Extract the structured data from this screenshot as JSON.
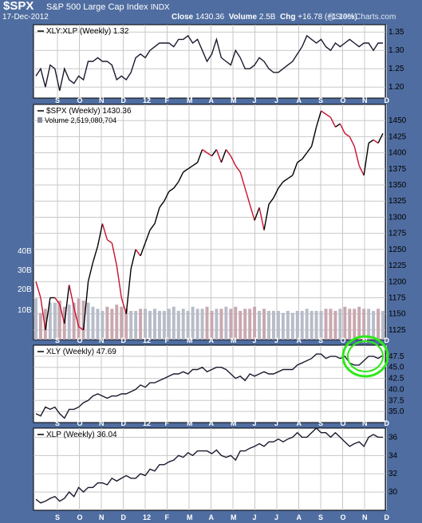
{
  "header": {
    "ticker": "$SPX",
    "name": "S&P 500 Large Cap Index",
    "exchange": "INDX",
    "date": "17-Dec-2012",
    "close_label": "Close",
    "close_value": "1430.36",
    "volume_label": "Volume",
    "volume_value": "2.5B",
    "chg_label": "Chg",
    "chg_value": "+16.78 (+1.19%)",
    "credit": "@StockCharts.com"
  },
  "x_axis": {
    "labels": [
      "S",
      "O",
      "N",
      "D",
      "12",
      "F",
      "M",
      "A",
      "M",
      "J",
      "J",
      "A",
      "S",
      "O",
      "N",
      "D"
    ]
  },
  "chart_data": [
    {
      "type": "line",
      "label": "XLY:XLP (Weekly) 1.32",
      "ylim": [
        1.17,
        1.37
      ],
      "yticks": [
        1.2,
        1.25,
        1.3,
        1.35
      ],
      "values": [
        1.23,
        1.25,
        1.2,
        1.26,
        1.25,
        1.19,
        1.25,
        1.22,
        1.21,
        1.23,
        1.22,
        1.27,
        1.27,
        1.28,
        1.27,
        1.27,
        1.26,
        1.22,
        1.23,
        1.22,
        1.24,
        1.28,
        1.29,
        1.28,
        1.3,
        1.31,
        1.32,
        1.32,
        1.32,
        1.31,
        1.33,
        1.33,
        1.34,
        1.32,
        1.33,
        1.3,
        1.27,
        1.29,
        1.33,
        1.28,
        1.27,
        1.26,
        1.3,
        1.28,
        1.25,
        1.25,
        1.26,
        1.28,
        1.27,
        1.25,
        1.24,
        1.24,
        1.25,
        1.26,
        1.27,
        1.29,
        1.31,
        1.34,
        1.33,
        1.32,
        1.33,
        1.31,
        1.3,
        1.32,
        1.31,
        1.32,
        1.33,
        1.32,
        1.31,
        1.32,
        1.32,
        1.3,
        1.32,
        1.32
      ]
    },
    {
      "type": "line",
      "label": "$SPX (Weekly) 1430.36",
      "volume_label": "Volume 2,519,080,704",
      "ylim": [
        1110,
        1475
      ],
      "yticks": [
        1125,
        1150,
        1175,
        1200,
        1225,
        1250,
        1275,
        1300,
        1325,
        1350,
        1375,
        1400,
        1425,
        1450
      ],
      "volume_yticks": [
        "40B",
        "30B",
        "20B",
        "10B"
      ],
      "values": [
        1200,
        1175,
        1125,
        1175,
        1175,
        1165,
        1135,
        1195,
        1160,
        1130,
        1125,
        1200,
        1230,
        1255,
        1290,
        1265,
        1260,
        1225,
        1175,
        1150,
        1220,
        1250,
        1240,
        1260,
        1280,
        1290,
        1315,
        1325,
        1340,
        1345,
        1355,
        1370,
        1375,
        1380,
        1385,
        1405,
        1400,
        1395,
        1405,
        1385,
        1405,
        1395,
        1380,
        1370,
        1345,
        1320,
        1295,
        1315,
        1280,
        1320,
        1330,
        1345,
        1355,
        1360,
        1365,
        1385,
        1390,
        1400,
        1410,
        1440,
        1465,
        1460,
        1455,
        1440,
        1445,
        1430,
        1425,
        1410,
        1380,
        1365,
        1415,
        1420,
        1415,
        1430
      ],
      "volume_values": [
        20,
        13,
        15,
        18,
        18,
        19,
        16,
        17,
        18,
        20,
        19,
        18,
        16,
        15,
        14,
        16,
        15,
        17,
        16,
        15,
        14,
        14,
        15,
        15,
        14,
        15,
        14,
        14,
        15,
        16,
        14,
        15,
        14,
        16,
        15,
        15,
        16,
        14,
        15,
        15,
        16,
        15,
        16,
        14,
        15,
        15,
        16,
        14,
        15,
        14,
        14,
        14,
        13,
        14,
        13,
        14,
        14,
        15,
        14,
        14,
        14,
        15,
        15,
        14,
        15,
        16,
        15,
        15,
        16,
        15,
        15,
        14,
        15,
        14
      ]
    },
    {
      "type": "line",
      "label": "XLY (Weekly) 47.69",
      "ylim": [
        32.5,
        50.0
      ],
      "yticks": [
        35.0,
        37.5,
        40.0,
        42.5,
        45.0,
        47.5
      ],
      "values": [
        34.5,
        34.0,
        36.0,
        35.5,
        36.0,
        34.5,
        33.5,
        35.5,
        35.5,
        36.0,
        37.0,
        37.5,
        38.5,
        39.0,
        38.5,
        38.0,
        38.5,
        38.5,
        39.0,
        39.0,
        39.5,
        40.0,
        41.0,
        40.5,
        41.5,
        41.5,
        42.0,
        42.5,
        43.0,
        43.5,
        43.5,
        44.0,
        43.5,
        44.5,
        44.5,
        45.0,
        44.0,
        44.5,
        45.0,
        45.0,
        44.5,
        43.5,
        42.5,
        43.0,
        42.0,
        43.5,
        43.0,
        43.5,
        44.0,
        43.5,
        43.5,
        44.0,
        44.5,
        44.5,
        44.5,
        45.5,
        46.0,
        46.5,
        47.0,
        48.0,
        48.0,
        47.0,
        47.5,
        47.5,
        47.0,
        47.5,
        46.0,
        45.5,
        45.5,
        46.5,
        47.5,
        47.5,
        47.0,
        47.7
      ]
    },
    {
      "type": "line",
      "label": "XLP (Weekly) 36.04",
      "ylim": [
        28.0,
        37.0
      ],
      "yticks": [
        30,
        32,
        34,
        36
      ],
      "values": [
        29.2,
        28.8,
        29.0,
        29.3,
        29.5,
        29.0,
        29.3,
        30.0,
        29.5,
        30.5,
        30.0,
        30.5,
        30.5,
        31.0,
        31.0,
        30.8,
        31.5,
        31.2,
        31.5,
        31.8,
        31.5,
        31.5,
        32.0,
        31.8,
        32.5,
        32.3,
        33.0,
        33.0,
        33.3,
        33.5,
        34.0,
        33.8,
        34.3,
        34.0,
        34.5,
        34.5,
        34.5,
        34.2,
        34.6,
        34.0,
        33.8,
        34.0,
        33.5,
        34.5,
        34.5,
        34.8,
        35.0,
        35.3,
        35.0,
        35.5,
        35.5,
        35.8,
        35.5,
        35.8,
        36.0,
        36.5,
        36.0,
        36.0,
        36.5,
        37.0,
        36.5,
        36.5,
        36.0,
        36.5,
        36.0,
        35.5,
        35.0,
        35.3,
        35.5,
        35.0,
        36.0,
        36.3,
        36.0,
        36.0
      ]
    }
  ]
}
